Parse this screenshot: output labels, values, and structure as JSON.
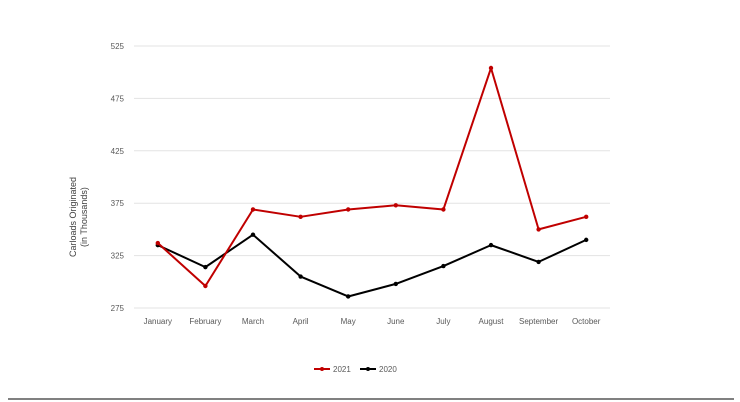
{
  "chart_data": {
    "type": "line",
    "title": "",
    "xlabel": "",
    "ylabel_lines": [
      "Carloads Originated",
      "(in Thousands)"
    ],
    "categories": [
      "January",
      "February",
      "March",
      "April",
      "May",
      "June",
      "July",
      "August",
      "September",
      "October"
    ],
    "yticks": [
      275,
      325,
      375,
      425,
      475,
      525
    ],
    "ylim": [
      275,
      525
    ],
    "grid": true,
    "legend_position": "bottom",
    "series": [
      {
        "name": "2021",
        "color": "#c00000",
        "values": [
          337,
          296,
          369,
          362,
          369,
          373,
          369,
          504,
          350,
          362
        ]
      },
      {
        "name": "2020",
        "color": "#000000",
        "values": [
          335,
          314,
          345,
          305,
          286,
          298,
          315,
          335,
          319,
          340
        ]
      }
    ]
  }
}
